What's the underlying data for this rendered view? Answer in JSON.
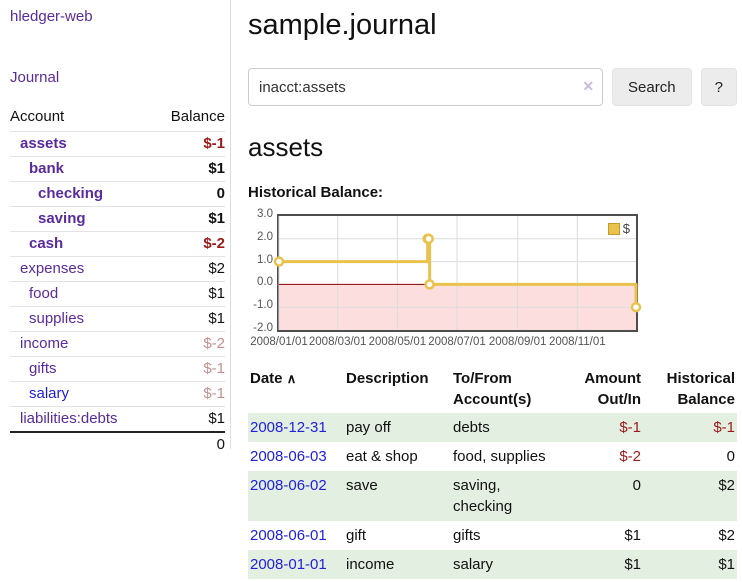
{
  "colors": {
    "link_purple": "#5a2b9e",
    "link_blue": "#2121dd",
    "neg": "#9e1a1a",
    "negsoft": "#c48f8f",
    "stripe_green": "#e3efe0",
    "series_yellow": "#e9c24d",
    "negative_fill": "#fcdede",
    "zero_line": "#8b0000",
    "chart_border": "#4d4d4d",
    "grid": "#dcdcdc",
    "axis_label": "#545454",
    "divider": "#dddddd"
  },
  "sidebar": {
    "app_title": "hledger-web",
    "nav_journal": "Journal",
    "table_header": {
      "account": "Account",
      "balance": "Balance"
    },
    "accounts": [
      {
        "name": "assets",
        "balance": "$-1",
        "level": 1,
        "bold": true,
        "balance_style": "neg"
      },
      {
        "name": "bank",
        "balance": "$1",
        "level": 2,
        "bold": true,
        "balance_style": "pos"
      },
      {
        "name": "checking",
        "balance": "0",
        "level": 3,
        "bold": true,
        "balance_style": "pos"
      },
      {
        "name": "saving",
        "balance": "$1",
        "level": 3,
        "bold": true,
        "balance_style": "pos"
      },
      {
        "name": "cash",
        "balance": "$-2",
        "level": 2,
        "bold": true,
        "balance_style": "neg"
      },
      {
        "name": "expenses",
        "balance": "$2",
        "level": 1,
        "bold": false,
        "balance_style": "pos"
      },
      {
        "name": "food",
        "balance": "$1",
        "level": 2,
        "bold": false,
        "balance_style": "pos"
      },
      {
        "name": "supplies",
        "balance": "$1",
        "level": 2,
        "bold": false,
        "balance_style": "pos"
      },
      {
        "name": "income",
        "balance": "$-2",
        "level": 1,
        "bold": false,
        "balance_style": "negsoft"
      },
      {
        "name": "gifts",
        "balance": "$-1",
        "level": 2,
        "bold": false,
        "balance_style": "negsoft"
      },
      {
        "name": "salary",
        "balance": "$-1",
        "level": 2,
        "bold": false,
        "balance_style": "negsoft",
        "link_style": "blue"
      },
      {
        "name": "liabilities:debts",
        "balance": "$1",
        "level": 1,
        "bold": false,
        "balance_style": "pos"
      }
    ],
    "total": "0"
  },
  "main": {
    "title": "sample.journal",
    "search": {
      "value": "inacct:assets",
      "clear_icon": "✕",
      "button": "Search",
      "help_button": "?"
    },
    "account_heading": "assets",
    "chart_label": "Historical Balance:",
    "register": {
      "headers": {
        "date": {
          "label": "Date",
          "sort_icon": "∧"
        },
        "description": [
          "Description"
        ],
        "account": [
          "To/From",
          "Account(s)"
        ],
        "amount": [
          "Amount",
          "Out/In"
        ],
        "balance": [
          "Historical",
          "Balance"
        ]
      },
      "rows": [
        {
          "date": "2008-12-31",
          "description": "pay off",
          "accounts": [
            "debts"
          ],
          "amount": "$-1",
          "amount_neg": true,
          "balance": "$-1",
          "balance_neg": true
        },
        {
          "date": "2008-06-03",
          "description": "eat & shop",
          "accounts": [
            "food, supplies"
          ],
          "amount": "$-2",
          "amount_neg": true,
          "balance": "0",
          "balance_neg": false
        },
        {
          "date": "2008-06-02",
          "description": "save",
          "accounts": [
            "saving,",
            "checking"
          ],
          "amount": "0",
          "amount_neg": false,
          "balance": "$2",
          "balance_neg": false
        },
        {
          "date": "2008-06-01",
          "description": "gift",
          "accounts": [
            "gifts"
          ],
          "amount": "$1",
          "amount_neg": false,
          "balance": "$2",
          "balance_neg": false
        },
        {
          "date": "2008-01-01",
          "description": "income",
          "accounts": [
            "salary"
          ],
          "amount": "$1",
          "amount_neg": false,
          "balance": "$1",
          "balance_neg": false
        }
      ]
    }
  },
  "chart_data": {
    "type": "line",
    "title": "Historical Balance",
    "legend": [
      {
        "label": "$",
        "color": "#e9c24d"
      }
    ],
    "legend_position": "top-right",
    "xlim": [
      0,
      365
    ],
    "ylim": [
      -2,
      3
    ],
    "grid": true,
    "x_ticks": [
      {
        "x": 0,
        "label": "2008/01/01"
      },
      {
        "x": 60,
        "label": "2008/03/01"
      },
      {
        "x": 121,
        "label": "2008/05/01"
      },
      {
        "x": 182,
        "label": "2008/07/01"
      },
      {
        "x": 244,
        "label": "2008/09/01"
      },
      {
        "x": 305,
        "label": "2008/11/01"
      }
    ],
    "y_ticks": [
      {
        "y": 3,
        "label": "3.0"
      },
      {
        "y": 2,
        "label": "2.0"
      },
      {
        "y": 1,
        "label": "1.0"
      },
      {
        "y": 0,
        "label": "0.0"
      },
      {
        "y": -1,
        "label": "-1.0"
      },
      {
        "y": -2,
        "label": "-2.0"
      }
    ],
    "y_gridlines": [
      2,
      1,
      -1
    ],
    "negative_region_fill": "#fcdede",
    "zero_line_color": "#8b0000",
    "series": [
      {
        "name": "$",
        "style": "step",
        "color": "#e9c24d",
        "points": [
          {
            "x": 0,
            "y": 1,
            "date": "2008-01-01"
          },
          {
            "x": 152,
            "y": 2,
            "date": "2008-06-01"
          },
          {
            "x": 153,
            "y": 2,
            "date": "2008-06-02"
          },
          {
            "x": 154,
            "y": 0,
            "date": "2008-06-03"
          },
          {
            "x": 365,
            "y": -1,
            "date": "2008-12-31"
          }
        ]
      }
    ]
  }
}
